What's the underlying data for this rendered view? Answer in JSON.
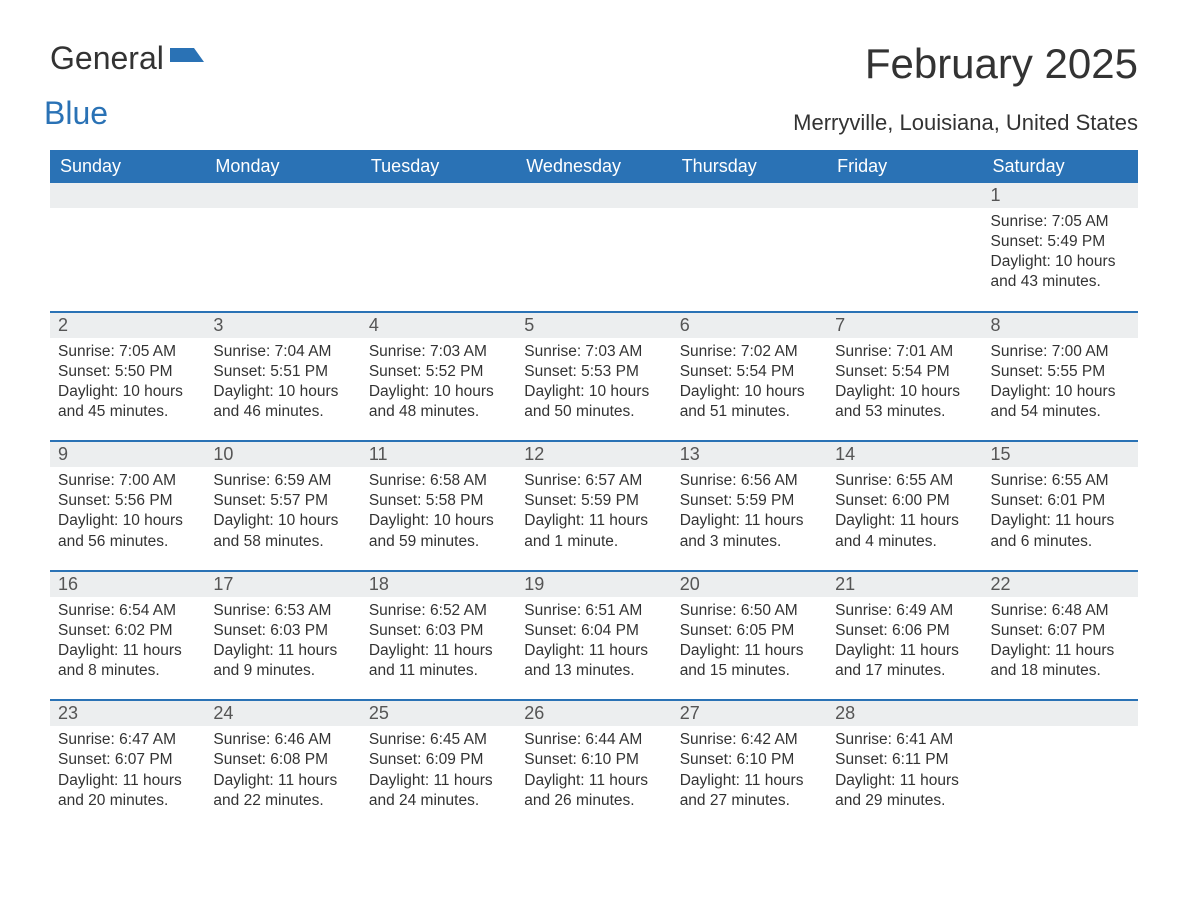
{
  "logo": {
    "text1": "General",
    "text2": "Blue"
  },
  "title": {
    "month": "February 2025",
    "location": "Merryville, Louisiana, United States"
  },
  "day_headers": [
    "Sunday",
    "Monday",
    "Tuesday",
    "Wednesday",
    "Thursday",
    "Friday",
    "Saturday"
  ],
  "colors": {
    "header_bg": "#2a72b5",
    "header_text": "#ffffff",
    "daynum_bg": "#eceeef",
    "border": "#2a72b5",
    "body_text": "#333333",
    "background": "#ffffff"
  },
  "layout": {
    "columns": 7,
    "first_day_column_index": 6
  },
  "weeks": [
    [
      {
        "n": "",
        "sunrise": "",
        "sunset": "",
        "daylight": ""
      },
      {
        "n": "",
        "sunrise": "",
        "sunset": "",
        "daylight": ""
      },
      {
        "n": "",
        "sunrise": "",
        "sunset": "",
        "daylight": ""
      },
      {
        "n": "",
        "sunrise": "",
        "sunset": "",
        "daylight": ""
      },
      {
        "n": "",
        "sunrise": "",
        "sunset": "",
        "daylight": ""
      },
      {
        "n": "",
        "sunrise": "",
        "sunset": "",
        "daylight": ""
      },
      {
        "n": "1",
        "sunrise": "Sunrise: 7:05 AM",
        "sunset": "Sunset: 5:49 PM",
        "daylight": "Daylight: 10 hours and 43 minutes."
      }
    ],
    [
      {
        "n": "2",
        "sunrise": "Sunrise: 7:05 AM",
        "sunset": "Sunset: 5:50 PM",
        "daylight": "Daylight: 10 hours and 45 minutes."
      },
      {
        "n": "3",
        "sunrise": "Sunrise: 7:04 AM",
        "sunset": "Sunset: 5:51 PM",
        "daylight": "Daylight: 10 hours and 46 minutes."
      },
      {
        "n": "4",
        "sunrise": "Sunrise: 7:03 AM",
        "sunset": "Sunset: 5:52 PM",
        "daylight": "Daylight: 10 hours and 48 minutes."
      },
      {
        "n": "5",
        "sunrise": "Sunrise: 7:03 AM",
        "sunset": "Sunset: 5:53 PM",
        "daylight": "Daylight: 10 hours and 50 minutes."
      },
      {
        "n": "6",
        "sunrise": "Sunrise: 7:02 AM",
        "sunset": "Sunset: 5:54 PM",
        "daylight": "Daylight: 10 hours and 51 minutes."
      },
      {
        "n": "7",
        "sunrise": "Sunrise: 7:01 AM",
        "sunset": "Sunset: 5:54 PM",
        "daylight": "Daylight: 10 hours and 53 minutes."
      },
      {
        "n": "8",
        "sunrise": "Sunrise: 7:00 AM",
        "sunset": "Sunset: 5:55 PM",
        "daylight": "Daylight: 10 hours and 54 minutes."
      }
    ],
    [
      {
        "n": "9",
        "sunrise": "Sunrise: 7:00 AM",
        "sunset": "Sunset: 5:56 PM",
        "daylight": "Daylight: 10 hours and 56 minutes."
      },
      {
        "n": "10",
        "sunrise": "Sunrise: 6:59 AM",
        "sunset": "Sunset: 5:57 PM",
        "daylight": "Daylight: 10 hours and 58 minutes."
      },
      {
        "n": "11",
        "sunrise": "Sunrise: 6:58 AM",
        "sunset": "Sunset: 5:58 PM",
        "daylight": "Daylight: 10 hours and 59 minutes."
      },
      {
        "n": "12",
        "sunrise": "Sunrise: 6:57 AM",
        "sunset": "Sunset: 5:59 PM",
        "daylight": "Daylight: 11 hours and 1 minute."
      },
      {
        "n": "13",
        "sunrise": "Sunrise: 6:56 AM",
        "sunset": "Sunset: 5:59 PM",
        "daylight": "Daylight: 11 hours and 3 minutes."
      },
      {
        "n": "14",
        "sunrise": "Sunrise: 6:55 AM",
        "sunset": "Sunset: 6:00 PM",
        "daylight": "Daylight: 11 hours and 4 minutes."
      },
      {
        "n": "15",
        "sunrise": "Sunrise: 6:55 AM",
        "sunset": "Sunset: 6:01 PM",
        "daylight": "Daylight: 11 hours and 6 minutes."
      }
    ],
    [
      {
        "n": "16",
        "sunrise": "Sunrise: 6:54 AM",
        "sunset": "Sunset: 6:02 PM",
        "daylight": "Daylight: 11 hours and 8 minutes."
      },
      {
        "n": "17",
        "sunrise": "Sunrise: 6:53 AM",
        "sunset": "Sunset: 6:03 PM",
        "daylight": "Daylight: 11 hours and 9 minutes."
      },
      {
        "n": "18",
        "sunrise": "Sunrise: 6:52 AM",
        "sunset": "Sunset: 6:03 PM",
        "daylight": "Daylight: 11 hours and 11 minutes."
      },
      {
        "n": "19",
        "sunrise": "Sunrise: 6:51 AM",
        "sunset": "Sunset: 6:04 PM",
        "daylight": "Daylight: 11 hours and 13 minutes."
      },
      {
        "n": "20",
        "sunrise": "Sunrise: 6:50 AM",
        "sunset": "Sunset: 6:05 PM",
        "daylight": "Daylight: 11 hours and 15 minutes."
      },
      {
        "n": "21",
        "sunrise": "Sunrise: 6:49 AM",
        "sunset": "Sunset: 6:06 PM",
        "daylight": "Daylight: 11 hours and 17 minutes."
      },
      {
        "n": "22",
        "sunrise": "Sunrise: 6:48 AM",
        "sunset": "Sunset: 6:07 PM",
        "daylight": "Daylight: 11 hours and 18 minutes."
      }
    ],
    [
      {
        "n": "23",
        "sunrise": "Sunrise: 6:47 AM",
        "sunset": "Sunset: 6:07 PM",
        "daylight": "Daylight: 11 hours and 20 minutes."
      },
      {
        "n": "24",
        "sunrise": "Sunrise: 6:46 AM",
        "sunset": "Sunset: 6:08 PM",
        "daylight": "Daylight: 11 hours and 22 minutes."
      },
      {
        "n": "25",
        "sunrise": "Sunrise: 6:45 AM",
        "sunset": "Sunset: 6:09 PM",
        "daylight": "Daylight: 11 hours and 24 minutes."
      },
      {
        "n": "26",
        "sunrise": "Sunrise: 6:44 AM",
        "sunset": "Sunset: 6:10 PM",
        "daylight": "Daylight: 11 hours and 26 minutes."
      },
      {
        "n": "27",
        "sunrise": "Sunrise: 6:42 AM",
        "sunset": "Sunset: 6:10 PM",
        "daylight": "Daylight: 11 hours and 27 minutes."
      },
      {
        "n": "28",
        "sunrise": "Sunrise: 6:41 AM",
        "sunset": "Sunset: 6:11 PM",
        "daylight": "Daylight: 11 hours and 29 minutes."
      },
      {
        "n": "",
        "sunrise": "",
        "sunset": "",
        "daylight": ""
      }
    ]
  ]
}
